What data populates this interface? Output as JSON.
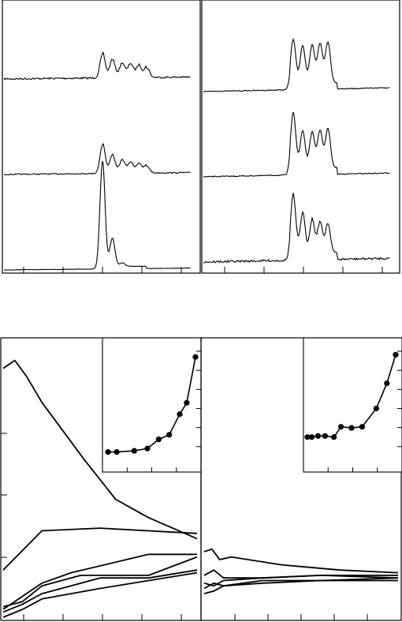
{
  "chart_data": [
    {
      "type": "line",
      "panel": "top-left",
      "description_level": "spectra stack",
      "traces": [
        {
          "baseline": 0.0,
          "peaks": [
            [
              0.0,
              0.78
            ],
            [
              0.12,
              0.55
            ],
            [
              0.24,
              0.42
            ],
            [
              0.34,
              0.4
            ],
            [
              0.44,
              0.35
            ],
            [
              0.54,
              0.32
            ]
          ],
          "noise": 0.1
        },
        {
          "baseline": 0.0,
          "peaks": [
            [
              0.0,
              0.95
            ],
            [
              0.12,
              0.55
            ],
            [
              0.24,
              0.38
            ],
            [
              0.34,
              0.3
            ],
            [
              0.44,
              0.26
            ],
            [
              0.54,
              0.22
            ]
          ],
          "noise": 0.06
        },
        {
          "baseline": 0.0,
          "peaks": [
            [
              0.0,
              3.6
            ],
            [
              0.12,
              0.95
            ],
            [
              0.24,
              0.12
            ]
          ],
          "noise": 0.02
        }
      ]
    },
    {
      "type": "line",
      "panel": "top-right",
      "traces": [
        {
          "baseline": 0.0,
          "peaks": [
            [
              0.0,
              1.4
            ],
            [
              0.12,
              1.2
            ],
            [
              0.24,
              1.2
            ],
            [
              0.34,
              1.25
            ],
            [
              0.44,
              1.3
            ]
          ],
          "noise": 0.05
        },
        {
          "baseline": 0.0,
          "peaks": [
            [
              0.0,
              1.8
            ],
            [
              0.12,
              1.2
            ],
            [
              0.24,
              1.15
            ],
            [
              0.34,
              1.2
            ],
            [
              0.44,
              1.25
            ]
          ],
          "noise": 0.05
        },
        {
          "baseline": 0.0,
          "peaks": [
            [
              0.0,
              1.9
            ],
            [
              0.12,
              1.3
            ],
            [
              0.24,
              1.1
            ],
            [
              0.34,
              1.0
            ],
            [
              0.44,
              0.95
            ]
          ],
          "noise": 0.12
        }
      ]
    },
    {
      "type": "line",
      "panel": "bottom-left",
      "ylim": [
        0,
        1
      ],
      "series": [
        {
          "x": [
            0.0,
            0.06,
            0.12,
            0.2,
            0.42,
            0.58,
            0.75,
            1.0
          ],
          "values": [
            0.95,
            0.98,
            0.92,
            0.82,
            0.6,
            0.45,
            0.38,
            0.3
          ]
        },
        {
          "x": [
            0.0,
            0.2,
            0.5,
            1.0
          ],
          "values": [
            0.18,
            0.33,
            0.34,
            0.32
          ]
        },
        {
          "x": [
            0.0,
            0.08,
            0.2,
            0.35,
            0.75,
            1.0
          ],
          "values": [
            0.03,
            0.07,
            0.13,
            0.17,
            0.24,
            0.24
          ]
        },
        {
          "x": [
            0.0,
            0.1,
            0.2,
            0.4,
            0.75,
            1.0
          ],
          "values": [
            0.04,
            0.06,
            0.12,
            0.16,
            0.16,
            0.23
          ]
        },
        {
          "x": [
            0.0,
            0.1,
            0.2,
            0.5,
            0.75,
            1.0
          ],
          "values": [
            0.02,
            0.05,
            0.09,
            0.15,
            0.15,
            0.18
          ]
        },
        {
          "x": [
            0.0,
            0.1,
            0.2,
            0.5,
            0.75,
            1.0
          ],
          "values": [
            0.0,
            0.03,
            0.07,
            0.11,
            0.14,
            0.17
          ]
        }
      ],
      "inset": {
        "x": [
          0.0,
          0.1,
          0.3,
          0.45,
          0.58,
          0.7,
          0.82,
          0.9,
          1.0
        ],
        "values": [
          0.12,
          0.12,
          0.13,
          0.15,
          0.23,
          0.27,
          0.45,
          0.55,
          0.95
        ]
      }
    },
    {
      "type": "line",
      "panel": "bottom-right",
      "ylim": [
        0,
        1
      ],
      "series": [
        {
          "x": [
            0.0,
            0.04,
            0.08,
            0.14,
            0.4,
            0.7,
            1.0
          ],
          "values": [
            0.25,
            0.26,
            0.22,
            0.23,
            0.2,
            0.18,
            0.17
          ]
        },
        {
          "x": [
            0.0,
            0.05,
            0.1,
            0.3,
            0.6,
            1.0
          ],
          "values": [
            0.16,
            0.18,
            0.15,
            0.15,
            0.16,
            0.15
          ]
        },
        {
          "x": [
            0.0,
            0.05,
            0.1,
            0.3,
            0.6,
            1.0
          ],
          "values": [
            0.13,
            0.12,
            0.14,
            0.15,
            0.16,
            0.16
          ]
        },
        {
          "x": [
            0.0,
            0.05,
            0.1,
            0.3,
            0.6,
            1.0
          ],
          "values": [
            0.11,
            0.13,
            0.12,
            0.14,
            0.14,
            0.15
          ]
        },
        {
          "x": [
            0.0,
            0.05,
            0.1,
            0.3,
            0.6,
            1.0
          ],
          "values": [
            0.09,
            0.1,
            0.12,
            0.13,
            0.14,
            0.14
          ]
        }
      ],
      "inset": {
        "x": [
          0.0,
          0.05,
          0.12,
          0.2,
          0.3,
          0.38,
          0.5,
          0.62,
          0.78,
          0.9,
          1.0
        ],
        "values": [
          0.25,
          0.25,
          0.26,
          0.26,
          0.25,
          0.34,
          0.33,
          0.34,
          0.5,
          0.72,
          0.97
        ]
      }
    }
  ]
}
